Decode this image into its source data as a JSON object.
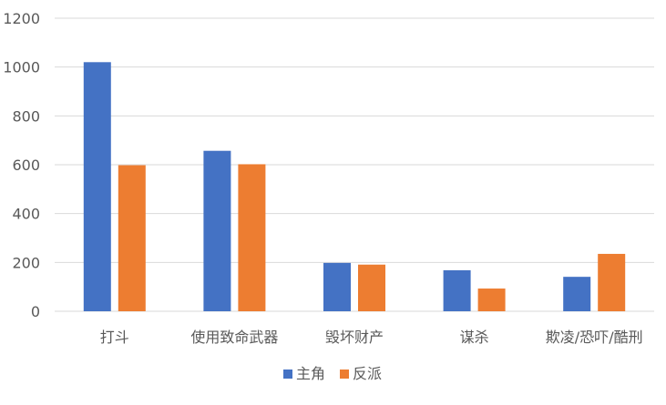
{
  "chart_data": {
    "type": "bar",
    "categories": [
      "打斗",
      "使用致命武器",
      "毁坏财产",
      "谋杀",
      "欺凌/恐吓/酷刑"
    ],
    "series": [
      {
        "name": "主角",
        "values": [
          1020,
          657,
          198,
          168,
          141
        ],
        "color": "#4472C4"
      },
      {
        "name": "反派",
        "values": [
          598,
          602,
          191,
          93,
          235
        ],
        "color": "#ED7D31"
      }
    ],
    "yticks": [
      "0",
      "200",
      "400",
      "600",
      "800",
      "1000",
      "1200"
    ],
    "ylim": [
      0,
      1200
    ],
    "grid": true,
    "legend_position": "bottom-center",
    "gridline_color": "#D9D9D9"
  }
}
